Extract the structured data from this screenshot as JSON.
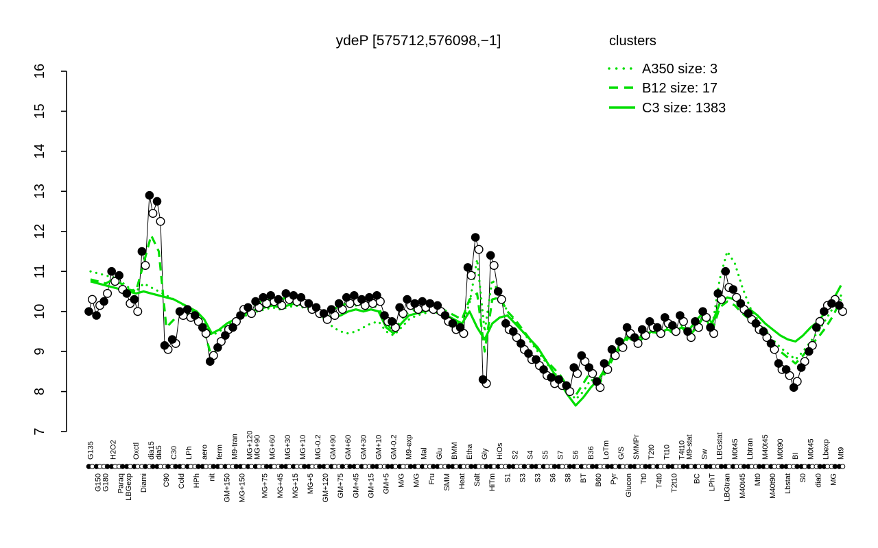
{
  "title": "ydeP [575712,576098,−1]",
  "legend": {
    "title": "clusters",
    "color": "#00DE00",
    "position": "top-right",
    "entries": [
      {
        "label": "A350 size: 3",
        "style": "dotted"
      },
      {
        "label": "B12 size: 17",
        "style": "dashed"
      },
      {
        "label": "C3 size: 1383",
        "style": "solid"
      }
    ]
  },
  "chart_data": {
    "type": "line",
    "title": "ydeP [575712,576098,−1]",
    "xlabel": "",
    "ylabel": "",
    "ylim": [
      7,
      16
    ],
    "yticks": [
      7,
      8,
      9,
      10,
      11,
      12,
      13,
      14,
      15,
      16
    ],
    "grid": false,
    "x_label_rotation": 90,
    "categories": [
      "G135",
      "G150",
      "G180",
      "H2O2",
      "Paraq",
      "LBGexp",
      "Oxctl",
      "Diami",
      "dia15",
      "dia5",
      "C90",
      "C30",
      "Cold",
      "LPh",
      "HPh",
      "aero",
      "nit",
      "ferm",
      "GM+150",
      "M9-tran",
      "MG+150",
      "MG+120",
      "MG+90",
      "MG+75",
      "MG+60",
      "MG+45",
      "MG+30",
      "MG+15",
      "MG+10",
      "MG+5",
      "MG-0.2",
      "GM+120",
      "GM+90",
      "GM+75",
      "GM+60",
      "GM+45",
      "GM+30",
      "GM+15",
      "GM+10",
      "GM+5",
      "GM-0.2",
      "M/G",
      "M9-exp",
      "M/G",
      "Mal",
      "Fru",
      "Glu",
      "SMM",
      "BMM",
      "Heat",
      "Etha",
      "Salt",
      "Gly",
      "HiTm",
      "HiOs",
      "S1",
      "S2",
      "S3",
      "S4",
      "S3",
      "S5",
      "S6",
      "S7",
      "S8",
      "S6",
      "BT",
      "B36",
      "B60",
      "LoTm",
      "Pyr",
      "G/S",
      "Glucon",
      "SMMPr",
      "Tt0",
      "T2t0",
      "T4t0",
      "Tt10",
      "T2t10",
      "T4t10",
      "M9-stat",
      "BC",
      "Sw",
      "LPhT",
      "LBGstat",
      "LBGtran",
      "M0t45",
      "M40t45",
      "Lbtran",
      "Mt0",
      "M40t45",
      "M40t90",
      "M0t90",
      "Lbstat",
      "BI",
      "S0",
      "M0t45",
      "dia0",
      "Lbexp",
      "MG",
      "Mt9"
    ],
    "label_row": [
      "t",
      "b",
      "b",
      "t",
      "b",
      "b",
      "t",
      "b",
      "t",
      "t",
      "b",
      "t",
      "b",
      "t",
      "b",
      "t",
      "b",
      "t",
      "b",
      "t",
      "b",
      "t",
      "t",
      "b",
      "t",
      "b",
      "t",
      "b",
      "t",
      "b",
      "t",
      "b",
      "t",
      "b",
      "t",
      "b",
      "t",
      "b",
      "t",
      "b",
      "t",
      "b",
      "t",
      "b",
      "t",
      "b",
      "t",
      "b",
      "t",
      "b",
      "t",
      "b",
      "t",
      "b",
      "t",
      "b",
      "t",
      "b",
      "t",
      "b",
      "t",
      "b",
      "t",
      "b",
      "t",
      "b",
      "t",
      "b",
      "t",
      "b",
      "t",
      "b",
      "t",
      "b",
      "t",
      "b",
      "t",
      "b",
      "t",
      "t",
      "b",
      "t",
      "b",
      "t",
      "b",
      "t",
      "b",
      "t",
      "b",
      "t",
      "b",
      "t",
      "b",
      "t",
      "b",
      "t",
      "b",
      "t",
      "b",
      "t"
    ],
    "strip": [
      "f",
      "f",
      "o",
      "f",
      "o",
      "f",
      "f",
      "o",
      "o",
      "f",
      "o",
      "o",
      "f",
      "f",
      "o",
      "f",
      "o",
      "f",
      "f",
      "o",
      "f",
      "f",
      "f",
      "o",
      "f",
      "o",
      "f",
      "f",
      "o",
      "f",
      "o",
      "f",
      "f",
      "o",
      "o",
      "f",
      "f",
      "o",
      "f",
      "o",
      "f",
      "f",
      "o",
      "f",
      "f",
      "o",
      "f",
      "o",
      "f",
      "f",
      "o",
      "f",
      "o",
      "f",
      "f",
      "o",
      "f",
      "o",
      "o",
      "f",
      "f",
      "o",
      "f",
      "o",
      "f",
      "f",
      "o",
      "f",
      "o",
      "f",
      "f",
      "o",
      "f",
      "o",
      "f",
      "f",
      "o",
      "f",
      "o",
      "f",
      "f",
      "o",
      "f",
      "o",
      "f",
      "f",
      "o",
      "f",
      "o",
      "f",
      "f",
      "o",
      "f",
      "o",
      "f",
      "f",
      "o",
      "f",
      "o",
      "f"
    ],
    "series": [
      {
        "name": "expression-filled",
        "marker": "filled-circle",
        "color": "#000000",
        "values": [
          10.0,
          9.9,
          10.25,
          11.0,
          10.9,
          10.45,
          10.3,
          11.5,
          12.9,
          12.75,
          9.15,
          9.3,
          10.0,
          10.05,
          9.9,
          9.6,
          8.75,
          9.1,
          9.4,
          9.6,
          9.9,
          10.1,
          10.25,
          10.35,
          10.4,
          10.3,
          10.45,
          10.4,
          10.35,
          10.2,
          10.1,
          9.95,
          10.05,
          10.2,
          10.35,
          10.4,
          10.3,
          10.35,
          10.4,
          9.9,
          9.75,
          10.1,
          10.3,
          10.2,
          10.25,
          10.2,
          10.15,
          9.9,
          9.7,
          9.6,
          11.1,
          11.85,
          8.3,
          11.4,
          10.5,
          9.7,
          9.5,
          9.2,
          8.95,
          8.8,
          8.55,
          8.35,
          8.3,
          8.15,
          8.6,
          8.9,
          8.6,
          8.25,
          8.7,
          9.05,
          9.25,
          9.6,
          9.35,
          9.55,
          9.75,
          9.6,
          9.85,
          9.65,
          9.9,
          9.5,
          9.75,
          10.0,
          9.6,
          10.45,
          11.0,
          10.55,
          10.2,
          9.95,
          9.7,
          9.5,
          9.2,
          8.7,
          8.55,
          8.1,
          8.6,
          9.0,
          9.6,
          10.0,
          10.2,
          10.15
        ]
      },
      {
        "name": "expression-open",
        "marker": "open-circle",
        "color": "#000000",
        "values": [
          10.3,
          10.15,
          10.45,
          10.75,
          10.55,
          10.2,
          10.0,
          11.15,
          12.45,
          12.25,
          9.05,
          9.2,
          9.9,
          9.85,
          9.75,
          9.45,
          8.9,
          9.25,
          9.55,
          9.75,
          10.05,
          9.95,
          10.1,
          10.2,
          10.25,
          10.15,
          10.3,
          10.25,
          10.2,
          10.05,
          9.95,
          9.8,
          9.9,
          10.05,
          10.2,
          10.25,
          10.15,
          10.2,
          10.25,
          9.75,
          9.6,
          9.95,
          10.15,
          10.05,
          10.1,
          10.05,
          10.0,
          9.75,
          9.55,
          9.45,
          10.9,
          11.55,
          8.2,
          11.15,
          10.3,
          9.55,
          9.35,
          9.05,
          8.8,
          8.65,
          8.4,
          8.2,
          8.15,
          8.0,
          8.45,
          8.75,
          8.45,
          8.1,
          8.55,
          8.9,
          9.1,
          9.45,
          9.2,
          9.4,
          9.6,
          9.45,
          9.7,
          9.5,
          9.75,
          9.35,
          9.6,
          9.85,
          9.45,
          10.3,
          10.6,
          10.35,
          10.05,
          9.8,
          9.55,
          9.35,
          9.05,
          8.55,
          8.4,
          8.25,
          8.75,
          9.15,
          9.75,
          10.15,
          10.3,
          10.0
        ]
      },
      {
        "name": "A350",
        "style": "dotted",
        "color": "#00DE00",
        "size": 3,
        "values": [
          11.0,
          10.95,
          10.9,
          10.85,
          10.75,
          10.6,
          10.5,
          10.7,
          10.6,
          10.5,
          10.4,
          10.3,
          10.2,
          10.05,
          9.95,
          9.7,
          9.4,
          9.5,
          9.65,
          9.75,
          9.85,
          9.95,
          10.0,
          10.05,
          10.1,
          10.05,
          10.1,
          10.15,
          10.1,
          10.05,
          9.95,
          9.8,
          9.6,
          9.5,
          9.45,
          9.5,
          9.6,
          9.7,
          9.75,
          9.5,
          9.4,
          9.6,
          9.8,
          9.9,
          9.95,
          10.0,
          9.95,
          9.85,
          9.75,
          9.65,
          10.2,
          11.3,
          9.5,
          10.8,
          10.4,
          10.0,
          9.75,
          9.5,
          9.25,
          9.0,
          8.75,
          8.5,
          8.3,
          8.05,
          7.8,
          8.0,
          8.3,
          8.2,
          8.55,
          8.9,
          9.15,
          9.4,
          9.25,
          9.4,
          9.55,
          9.45,
          9.6,
          9.5,
          9.65,
          9.5,
          9.7,
          9.95,
          9.6,
          10.8,
          11.5,
          11.2,
          10.6,
          10.1,
          9.8,
          9.55,
          9.3,
          9.1,
          8.95,
          8.8,
          9.0,
          9.25,
          9.5,
          9.8,
          10.1,
          10.4
        ]
      },
      {
        "name": "B12",
        "style": "dashed",
        "color": "#00DE00",
        "size": 17,
        "values": [
          10.8,
          10.75,
          10.7,
          10.8,
          10.7,
          10.55,
          10.5,
          11.2,
          11.9,
          11.5,
          9.6,
          9.8,
          10.1,
          9.9,
          9.8,
          9.5,
          8.85,
          9.2,
          9.45,
          9.7,
          9.95,
          10.1,
          10.2,
          10.3,
          10.25,
          10.3,
          10.35,
          10.3,
          10.2,
          10.1,
          10.0,
          9.95,
          10.05,
          10.15,
          10.2,
          10.15,
          10.2,
          10.15,
          10.1,
          9.7,
          9.5,
          9.8,
          10.0,
          10.05,
          10.1,
          10.15,
          10.1,
          10.0,
          9.9,
          9.8,
          10.3,
          10.45,
          9.0,
          10.3,
          10.35,
          10.0,
          9.8,
          9.55,
          9.3,
          9.05,
          8.8,
          8.6,
          8.4,
          8.1,
          7.9,
          8.2,
          8.5,
          8.15,
          8.5,
          8.85,
          9.1,
          9.35,
          9.2,
          9.35,
          9.5,
          9.4,
          9.55,
          9.45,
          9.6,
          9.4,
          9.6,
          9.9,
          9.5,
          10.1,
          10.25,
          10.15,
          9.95,
          9.8,
          9.6,
          9.4,
          9.2,
          9.0,
          8.85,
          8.7,
          8.9,
          9.15,
          9.35,
          9.6,
          9.9,
          10.3
        ]
      },
      {
        "name": "C3",
        "style": "solid",
        "color": "#00DE00",
        "size": 1383,
        "values": [
          10.75,
          10.7,
          10.65,
          10.6,
          10.55,
          10.5,
          10.45,
          10.5,
          10.45,
          10.4,
          10.35,
          10.3,
          10.2,
          10.1,
          10.0,
          9.8,
          9.45,
          9.55,
          9.7,
          9.8,
          9.9,
          10.0,
          10.05,
          10.1,
          10.15,
          10.1,
          10.15,
          10.2,
          10.15,
          10.1,
          10.0,
          9.9,
          9.85,
          9.9,
          10.0,
          10.05,
          10.0,
          10.05,
          10.0,
          9.6,
          9.45,
          9.7,
          9.9,
          9.95,
          10.0,
          10.05,
          10.0,
          9.9,
          9.8,
          9.7,
          10.0,
          9.6,
          9.3,
          9.7,
          9.85,
          9.9,
          9.7,
          9.5,
          9.3,
          9.1,
          8.8,
          8.5,
          8.2,
          7.9,
          7.65,
          7.85,
          8.1,
          8.3,
          8.6,
          8.9,
          9.2,
          9.4,
          9.3,
          9.4,
          9.5,
          9.45,
          9.55,
          9.5,
          9.6,
          9.55,
          9.8,
          10.0,
          9.7,
          10.2,
          10.35,
          10.3,
          10.1,
          10.05,
          9.9,
          9.7,
          9.55,
          9.4,
          9.3,
          9.25,
          9.4,
          9.6,
          9.75,
          10.0,
          10.3,
          10.65
        ]
      }
    ]
  }
}
